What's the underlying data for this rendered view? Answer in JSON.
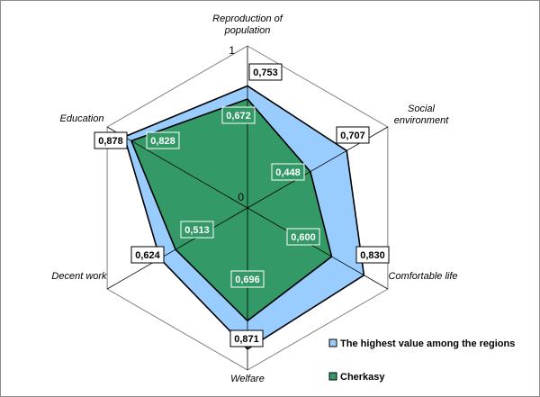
{
  "chart_data": {
    "type": "radar",
    "categories": [
      "Reproduction of population",
      "Social environment",
      "Comfortable life",
      "Welfare",
      "Decent work",
      "Education"
    ],
    "axis_label_lines": [
      [
        "Reproduction of",
        "population"
      ],
      [
        "Social",
        "environment"
      ],
      [
        "Comfortable life"
      ],
      [
        "Welfare"
      ],
      [
        "Decent work"
      ],
      [
        "Education"
      ]
    ],
    "series": [
      {
        "name": "The highest value among the regions",
        "values": [
          0.753,
          0.707,
          0.83,
          0.871,
          0.624,
          0.878
        ],
        "labels": [
          "0,753",
          "0,707",
          "0,830",
          "0,871",
          "0,624",
          "0,878"
        ],
        "color": "#99ccff"
      },
      {
        "name": "Cherkasy",
        "values": [
          0.672,
          0.448,
          0.6,
          0.696,
          0.513,
          0.828
        ],
        "labels": [
          "0,672",
          "0,448",
          "0,600",
          "0,696",
          "0,513",
          "0,828"
        ],
        "color": "#339966"
      }
    ],
    "rlim": [
      0,
      1
    ],
    "tick_labels": [
      "0",
      "1"
    ],
    "grid": true,
    "legend_position": "bottom-right"
  }
}
